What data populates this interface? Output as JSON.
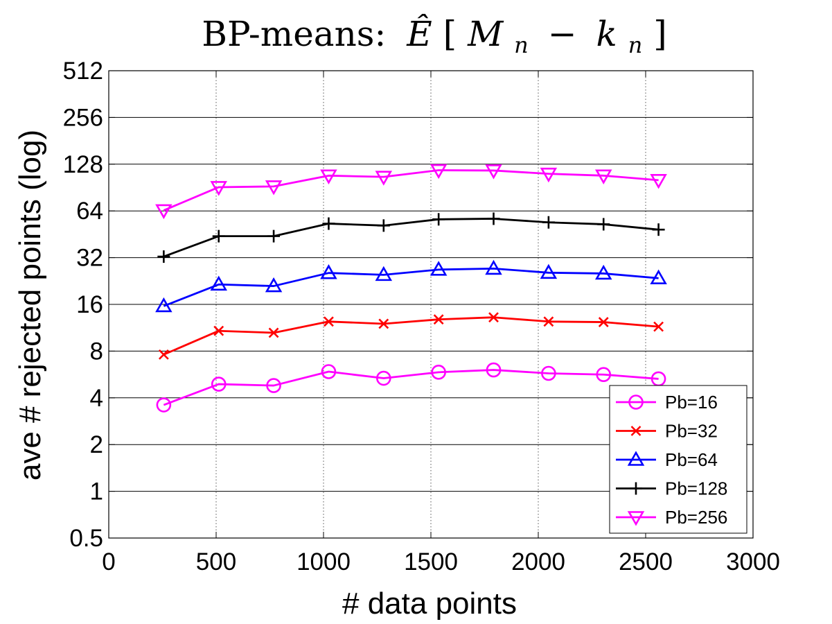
{
  "chart_data": {
    "type": "line",
    "title": {
      "prefix": "BP-means:",
      "e_hat": "Ê",
      "bracket_open": "[",
      "m": "M",
      "m_sub": "n",
      "minus": "−",
      "k": "k",
      "k_sub": "n",
      "bracket_close": "]"
    },
    "xlabel": "# data points",
    "ylabel": "ave # rejected points (log)",
    "xlim": [
      0,
      3000
    ],
    "ylim": [
      0.5,
      512
    ],
    "yscale": "log2",
    "xticks": [
      0,
      500,
      1000,
      1500,
      2000,
      2500,
      3000
    ],
    "xtick_labels": [
      "0",
      "500",
      "1000",
      "1500",
      "2000",
      "2500",
      "3000"
    ],
    "yticks": [
      0.5,
      1,
      2,
      4,
      8,
      16,
      32,
      64,
      128,
      256,
      512
    ],
    "ytick_labels": [
      "0.5",
      "1",
      "2",
      "4",
      "8",
      "16",
      "32",
      "64",
      "128",
      "256",
      "512"
    ],
    "grid": "vertical dotted, horizontal solid",
    "legend_position": "bottom-right",
    "x": [
      256,
      512,
      768,
      1024,
      1280,
      1536,
      1792,
      2048,
      2304,
      2560
    ],
    "series": [
      {
        "name": "Pb=16",
        "color": "#ff00ff",
        "marker": "circle",
        "values": [
          3.6,
          4.9,
          4.8,
          5.9,
          5.35,
          5.85,
          6.05,
          5.75,
          5.65,
          5.3
        ]
      },
      {
        "name": "Pb=32",
        "color": "#ff0000",
        "marker": "x",
        "values": [
          7.6,
          10.8,
          10.5,
          12.4,
          12.0,
          12.8,
          13.2,
          12.4,
          12.3,
          11.5
        ]
      },
      {
        "name": "Pb=64",
        "color": "#0000ff",
        "marker": "triangle-up",
        "values": [
          15.6,
          21.5,
          21.0,
          25.5,
          24.8,
          26.8,
          27.2,
          25.6,
          25.3,
          23.6
        ]
      },
      {
        "name": "Pb=128",
        "color": "#000000",
        "marker": "plus",
        "values": [
          32.5,
          44.0,
          44.0,
          53.0,
          51.5,
          56.5,
          57.0,
          54.0,
          52.5,
          48.5
        ]
      },
      {
        "name": "Pb=256",
        "color": "#ff00ff",
        "marker": "triangle-down",
        "values": [
          64.5,
          91.0,
          92.0,
          108.0,
          106.0,
          117.0,
          116.5,
          111.0,
          108.0,
          101.0
        ]
      }
    ]
  }
}
